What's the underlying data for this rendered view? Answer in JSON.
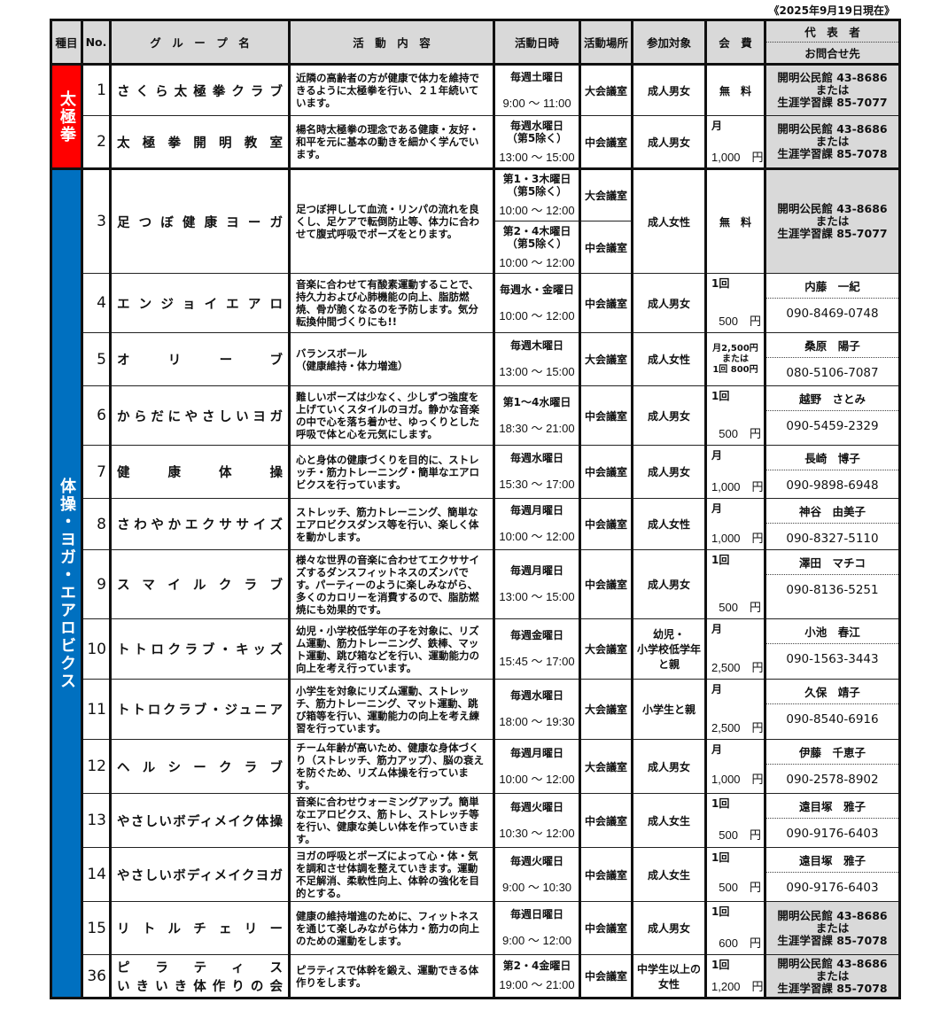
{
  "as_of": "《2025年9月19日現在》",
  "headers": {
    "category": "種目",
    "no": "No.",
    "group": "グ　ル　ー　プ　名",
    "content": "活　動　内　容",
    "datetime": "活動日時",
    "place": "活動場所",
    "target": "参加対象",
    "fee": "会　費",
    "contact_top": "代　表　者",
    "contact_bottom": "お問合せ先"
  },
  "colors": {
    "taikyokuken": "#ff0000",
    "taiso": "#0070c0",
    "header_bg": "#d9d9d9"
  },
  "categories": [
    {
      "label": "太極拳",
      "color": "#ff0000",
      "rows": 2
    },
    {
      "label": "体操・ヨガ・エアロビクス",
      "color": "#0070c0",
      "rows": 14
    }
  ],
  "rows": [
    {
      "no": "1",
      "group": [
        "さくら太極拳クラブ"
      ],
      "content": "近隣の高齢者の方が健康で体力を維持できるように太極拳を行い、２１年続いています。",
      "dates": [
        {
          "day": [
            "毎週土曜日"
          ],
          "time": "9:00 ～ 11:00",
          "place": "大会議室"
        }
      ],
      "target": "成人男女",
      "fee": {
        "center": "無　料"
      },
      "contact": {
        "gray": [
          "開明公民館 43-8686",
          "または",
          "生涯学習課 85-7077"
        ]
      }
    },
    {
      "no": "2",
      "group": [
        "太極拳開明教室"
      ],
      "content": "楊名時太極拳の理念である健康・友好・和平を元に基本の動きを細かく学んでいます。",
      "dates": [
        {
          "day": [
            "毎週水曜日",
            "（第5除く）"
          ],
          "time": "13:00 ～ 15:00",
          "place": "中会議室"
        }
      ],
      "target": "成人男女",
      "fee": {
        "unit": "月",
        "amount": "1,000　円"
      },
      "contact": {
        "gray": [
          "開明公民館 43-8686",
          "または",
          "生涯学習課 85-7078"
        ]
      }
    },
    {
      "no": "3",
      "group": [
        "足つぼ健康ヨーガ"
      ],
      "content": "足つぼ押しして血流・リンパの流れを良くし、足ケアで転倒防止等、体力に合わせて腹式呼吸でポーズをとります。",
      "dates": [
        {
          "day": [
            "第1・3木曜日",
            "（第5除く）"
          ],
          "time": "10:00 ～ 12:00",
          "place": "大会議室"
        },
        {
          "day": [
            "第2・4木曜日",
            "（第5除く）"
          ],
          "time": "10:00 ～ 12:00",
          "place": "中会議室"
        }
      ],
      "target": "成人女性",
      "fee": {
        "center": "無　料"
      },
      "contact": {
        "gray": [
          "開明公民館 43-8686",
          "または",
          "生涯学習課 85-7077"
        ]
      }
    },
    {
      "no": "4",
      "group": [
        "エンジョイエアロ"
      ],
      "content": "音楽に合わせて有酸素運動することで、持久力および心肺機能の向上、脂肪燃焼、骨が脆くなるのを予防します。気分転換仲間づくりにも!!",
      "dates": [
        {
          "day": [
            "毎週水・金曜日"
          ],
          "time": "10:00 ～ 12:00",
          "place": "中会議室"
        }
      ],
      "target": "成人男女",
      "fee": {
        "unit": "1回",
        "amount": "500　円"
      },
      "contact": {
        "name": "内藤　一紀",
        "phone": "090-8469-0748"
      }
    },
    {
      "no": "5",
      "group": [
        "オリーブ"
      ],
      "content": "バランスボール\n（健康維持・体力増進）",
      "dates": [
        {
          "day": [
            "毎週木曜日"
          ],
          "time": "13:00 ～ 15:00",
          "place": "大会議室"
        }
      ],
      "target": "成人女性",
      "fee": {
        "small": [
          "月2,500円",
          "または",
          "1回 800円"
        ]
      },
      "contact": {
        "name": "桑原　陽子",
        "phone": "080-5106-7087"
      }
    },
    {
      "no": "6",
      "group": [
        "からだにやさしいヨガ"
      ],
      "content": "難しいポーズは少なく、少しずつ強度を上げていくスタイルのヨガ。静かな音楽の中で心を落ち着かせ、ゆっくりとした呼吸で体と心を元気にします。",
      "dates": [
        {
          "day": [
            "第1～4水曜日"
          ],
          "time": "18:30 ～ 21:00",
          "place": "中会議室"
        }
      ],
      "target": "成人男女",
      "fee": {
        "unit": "1回",
        "amount": "500　円"
      },
      "contact": {
        "name": "越野　さとみ",
        "phone": "090-5459-2329"
      }
    },
    {
      "no": "7",
      "group": [
        "健康体操"
      ],
      "content": "心と身体の健康づくりを目的に、ストレッチ・筋力トレーニング・簡単なエアロビクスを行っています。",
      "dates": [
        {
          "day": [
            "毎週水曜日"
          ],
          "time": "15:30 ～ 17:00",
          "place": "中会議室"
        }
      ],
      "target": "成人男女",
      "fee": {
        "unit": "月",
        "amount": "1,000　円"
      },
      "contact": {
        "name": "長崎　博子",
        "phone": "090-9898-6948"
      }
    },
    {
      "no": "8",
      "group": [
        "さわやかエクササイズ"
      ],
      "content": "ストレッチ、筋力トレーニング、簡単なエアロビクスダンス等を行い、楽しく体を動かします。",
      "dates": [
        {
          "day": [
            "毎週月曜日"
          ],
          "time": "10:00 ～ 12:00",
          "place": "中会議室"
        }
      ],
      "target": "成人女性",
      "fee": {
        "unit": "月",
        "amount": "1,000　円"
      },
      "contact": {
        "name": "神谷　由美子",
        "phone": "090-8327-5110"
      }
    },
    {
      "no": "9",
      "group": [
        "スマイルクラブ"
      ],
      "content": "様々な世界の音楽に合わせてエクササイズするダンスフィットネスのズンバです。パーティーのように楽しみながら、多くのカロリーを消費するので、脂肪燃焼にも効果的です。",
      "dates": [
        {
          "day": [
            "毎週月曜日"
          ],
          "time": "13:00 ～ 15:00",
          "place": "中会議室"
        }
      ],
      "target": "成人男女",
      "fee": {
        "unit": "1回",
        "amount": "500　円"
      },
      "contact": {
        "name": "澤田　マチコ",
        "phone": "090-8136-5251"
      }
    },
    {
      "no": "10",
      "group": [
        "トトロクラブ・キッズ"
      ],
      "content": "幼児・小学校低学年の子を対象に、リズム運動、筋力トレーニング、鉄棒、マット運動、跳び箱などを行い、運動能力の向上を考え行っています。",
      "dates": [
        {
          "day": [
            "毎週金曜日"
          ],
          "time": "15:45 ～ 17:00",
          "place": "大会議室"
        }
      ],
      "target": "幼児・\n小学校低学年\nと親",
      "fee": {
        "unit": "月",
        "amount": "2,500　円"
      },
      "contact": {
        "name": "小池　春江",
        "phone": "090-1563-3443"
      }
    },
    {
      "no": "11",
      "group": [
        "トトロクラブ・ジュニア"
      ],
      "content": "小学生を対象にリズム運動、ストレッチ、筋力トレーニング、マット運動、跳び箱等を行い、運動能力の向上を考え練習を行っています。",
      "dates": [
        {
          "day": [
            "毎週水曜日"
          ],
          "time": "18:00 ～ 19:30",
          "place": "大会議室"
        }
      ],
      "target": "小学生と親",
      "fee": {
        "unit": "月",
        "amount": "2,500　円"
      },
      "contact": {
        "name": "久保　靖子",
        "phone": "090-8540-6916"
      }
    },
    {
      "no": "12",
      "group": [
        "ヘルシークラブ"
      ],
      "content": "チーム年齢が高いため、健康な身体づくり（ストレッチ、筋力アップ）、脳の衰えを防ぐため、リズム体操を行っています。",
      "dates": [
        {
          "day": [
            "毎週月曜日"
          ],
          "time": "10:00 ～ 12:00",
          "place": "大会議室"
        }
      ],
      "target": "成人男女",
      "fee": {
        "unit": "月",
        "amount": "1,000　円"
      },
      "contact": {
        "name": "伊藤　千恵子",
        "phone": "090-2578-8902"
      }
    },
    {
      "no": "13",
      "group": [
        "やさしいボディメイク体操"
      ],
      "content": "音楽に合わせウォーミングアップ。簡単なエアロビクス、筋トレ、ストレッチ等を行い、健康な美しい体を作っていきます。",
      "dates": [
        {
          "day": [
            "毎週火曜日"
          ],
          "time": "10:30 ～ 12:00",
          "place": "中会議室"
        }
      ],
      "target": "成人女生",
      "fee": {
        "unit": "1回",
        "amount": "500　円"
      },
      "contact": {
        "name": "遠目塚　雅子",
        "phone": "090-9176-6403"
      }
    },
    {
      "no": "14",
      "group": [
        "やさしいボディメイクヨガ"
      ],
      "content": "ヨガの呼吸とポーズによって心・体・気を調和させ体調を整えていきます。運動不足解消、柔軟性向上、体幹の強化を目的とする。",
      "dates": [
        {
          "day": [
            "毎週火曜日"
          ],
          "time": "9:00 ～ 10:30",
          "place": "中会議室"
        }
      ],
      "target": "成人女生",
      "fee": {
        "unit": "1回",
        "amount": "500　円"
      },
      "contact": {
        "name": "遠目塚　雅子",
        "phone": "090-9176-6403"
      }
    },
    {
      "no": "15",
      "group": [
        "リトルチェリー"
      ],
      "content": "健康の維持増進のために、フィットネスを通じて楽しみながら体力・筋力の向上のための運動をします。",
      "dates": [
        {
          "day": [
            "毎週日曜日"
          ],
          "time": "9:00 ～ 12:00",
          "place": "中会議室"
        }
      ],
      "target": "成人男女",
      "fee": {
        "unit": "1回",
        "amount": "600　円"
      },
      "contact": {
        "gray": [
          "開明公民館 43-8686",
          "または",
          "生涯学習課 85-7078"
        ]
      }
    },
    {
      "no": "36",
      "group": [
        "ピラティス",
        "いきいき体作りの会"
      ],
      "content": "ピラティスで体幹を鍛え、運動できる体作りをします。",
      "dates": [
        {
          "day": [
            "第2・4金曜日"
          ],
          "time": "19:00 ～ 21:00",
          "place": "中会議室"
        }
      ],
      "target": "中学生以上の\n女性",
      "fee": {
        "unit": "1回",
        "amount": "1,200　円"
      },
      "contact": {
        "gray": [
          "開明公民館 43-8686",
          "または",
          "生涯学習課 85-7078"
        ]
      }
    }
  ]
}
